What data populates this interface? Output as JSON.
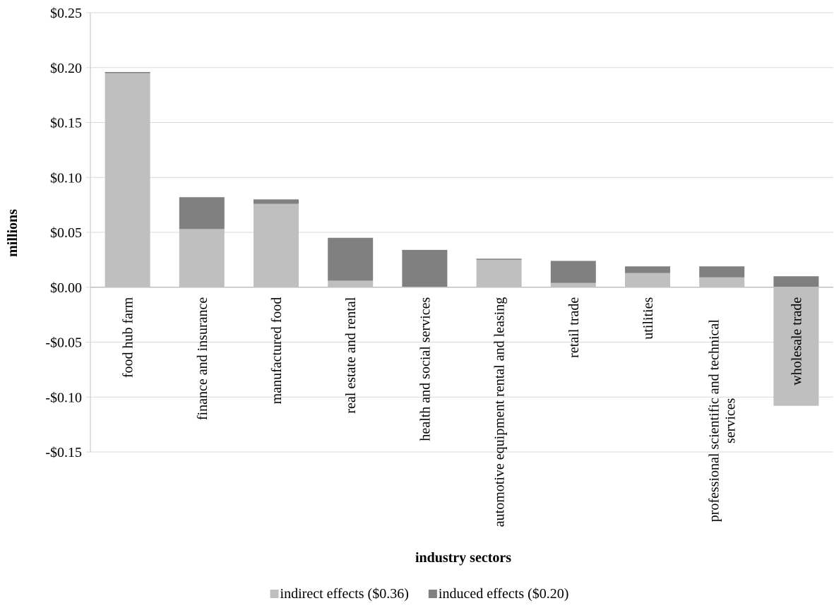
{
  "chart_data": {
    "type": "stacked_bar",
    "y_label": "millions",
    "x_label": "industry sectors",
    "categories": [
      "food hub farm",
      "finance and insurance",
      "manufactured food",
      "real estate and rental",
      "health and social services",
      "automotive equipment rental and leasing",
      "retail trade",
      "utilities",
      "professional scientific and technical services",
      "wholesale trade"
    ],
    "series": [
      {
        "name": "indirect effects ($0.36)",
        "color": "#bfbfbf",
        "values": [
          0.195,
          0.053,
          0.076,
          0.006,
          0,
          0.025,
          0.004,
          0.013,
          0.009,
          -0.108
        ]
      },
      {
        "name": "induced effects ($0.20)",
        "color": "#808080",
        "values": [
          0.001,
          0.029,
          0.004,
          0.039,
          0.034,
          0.001,
          0.02,
          0.006,
          0.01,
          0.01
        ]
      }
    ],
    "ylim": [
      -0.15,
      0.25
    ],
    "yticks": [
      {
        "value": -0.15,
        "label": "-$0.15"
      },
      {
        "value": -0.1,
        "label": "-$0.10"
      },
      {
        "value": -0.05,
        "label": "-$0.05"
      },
      {
        "value": 0,
        "label": "$0.00"
      },
      {
        "value": 0.05,
        "label": "$0.05"
      },
      {
        "value": 0.1,
        "label": "$0.10"
      },
      {
        "value": 0.15,
        "label": "$0.15"
      },
      {
        "value": 0.2,
        "label": "$0.20"
      },
      {
        "value": 0.25,
        "label": "$0.25"
      }
    ],
    "grid": true,
    "legend": "bottom"
  }
}
